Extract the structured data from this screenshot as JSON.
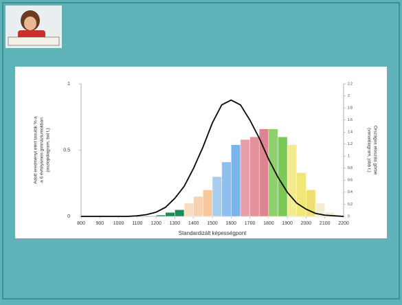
{
  "chart_data": {
    "type": "histogram",
    "xlabel": "Standardizált képességpont",
    "ylabel": [
      "Adott eredményt elért tanulók %-a",
      "a 6 évfolyamos gimnáziumokban",
      "(oszlopdiagram, bal t.)"
    ],
    "y2label": [
      "Országos eloszlás görbe",
      "(vonaldiagram, jobb t.)"
    ],
    "xlim": [
      800,
      2200
    ],
    "xticks": [
      800,
      900,
      1000,
      1100,
      1200,
      1300,
      1400,
      1500,
      1600,
      1700,
      1800,
      1900,
      2000,
      2100,
      2200
    ],
    "ylim": [
      0,
      1
    ],
    "yticks": [
      0,
      0.5,
      1
    ],
    "y2lim": [
      0,
      2.2
    ],
    "y2ticks": [
      0,
      0.2,
      0.4,
      0.6,
      0.8,
      1,
      1.2,
      1.4,
      1.6,
      1.8,
      2,
      2.2
    ],
    "bins": [
      1200,
      1250,
      1300,
      1350,
      1400,
      1450,
      1500,
      1550,
      1600,
      1650,
      1700,
      1750,
      1800,
      1850,
      1900,
      1950,
      2000,
      2050,
      2100,
      2150
    ],
    "values": [
      0.01,
      0.03,
      0.05,
      0.1,
      0.15,
      0.2,
      0.3,
      0.41,
      0.54,
      0.58,
      0.6,
      0.66,
      0.66,
      0.6,
      0.54,
      0.33,
      0.2,
      0.1,
      0.03
    ],
    "colors": [
      "#1e8a5a",
      "#1e8a5a",
      "#1e8a5a",
      "#f7dcc4",
      "#f7d2b0",
      "#f5c8a0",
      "#a8cdf0",
      "#8fbfee",
      "#7ab2ea",
      "#e8a0a8",
      "#e3919b",
      "#de838f",
      "#8fd06a",
      "#7cc858",
      "#f3ec8c",
      "#f0e67a",
      "#ede070",
      "#f3eed0",
      "#f3eed0"
    ],
    "series": [
      {
        "type": "line",
        "axis": "y2",
        "color": "#000000",
        "x": [
          800,
          850,
          900,
          950,
          1000,
          1050,
          1100,
          1150,
          1200,
          1250,
          1300,
          1350,
          1400,
          1450,
          1500,
          1550,
          1600,
          1650,
          1700,
          1750,
          1800,
          1850,
          1900,
          1950,
          2000,
          2050,
          2100,
          2150,
          2200
        ],
        "values": [
          0,
          0,
          0,
          0,
          0,
          0,
          0.01,
          0.03,
          0.07,
          0.15,
          0.3,
          0.5,
          0.8,
          1.15,
          1.55,
          1.85,
          1.93,
          1.85,
          1.6,
          1.3,
          0.95,
          0.65,
          0.4,
          0.22,
          0.12,
          0.05,
          0.02,
          0.01,
          0
        ]
      }
    ]
  }
}
